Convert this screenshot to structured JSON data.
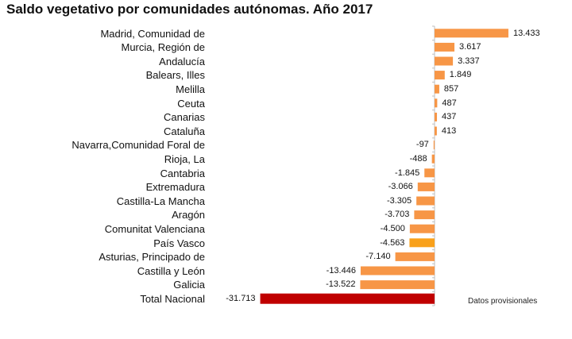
{
  "chart_data": {
    "type": "bar",
    "orientation": "horizontal",
    "title": "Saldo vegetativo por comunidades autónomas. Año 2017",
    "xlabel": "",
    "ylabel": "",
    "note": "Datos provisionales",
    "grid": false,
    "legend": "none",
    "categories": [
      "Madrid, Comunidad de",
      "Murcia, Región de",
      "Andalucía",
      "Balears, Illes",
      "Melilla",
      "Ceuta",
      "Canarias",
      "Cataluña",
      "Navarra,Comunidad Foral de",
      "Rioja, La",
      "Cantabria",
      "Extremadura",
      "Castilla-La Mancha",
      "Aragón",
      "Comunitat Valenciana",
      "País Vasco",
      "Asturias, Principado de",
      "Castilla y León",
      "Galicia",
      "Total Nacional"
    ],
    "values": [
      13433,
      3617,
      3337,
      1849,
      857,
      487,
      437,
      413,
      -97,
      -488,
      -1845,
      -3066,
      -3305,
      -3703,
      -4500,
      -4563,
      -7140,
      -13446,
      -13522,
      -31713
    ],
    "value_labels": [
      "13.433",
      "3.617",
      "3.337",
      "1.849",
      "857",
      "487",
      "437",
      "413",
      "-97",
      "-488",
      "-1.845",
      "-3.066",
      "-3.305",
      "-3.703",
      "-4.500",
      "-4.563",
      "-7.140",
      "-13.446",
      "-13.522",
      "-31.713"
    ],
    "xlim": [
      -31713,
      13433
    ],
    "colors": {
      "default": "#f79646",
      "highlight": "#f9a11b",
      "total": "#c00000",
      "axis": "#bfbfbf"
    },
    "highlight_category": "País Vasco",
    "total_category": "Total Nacional"
  }
}
